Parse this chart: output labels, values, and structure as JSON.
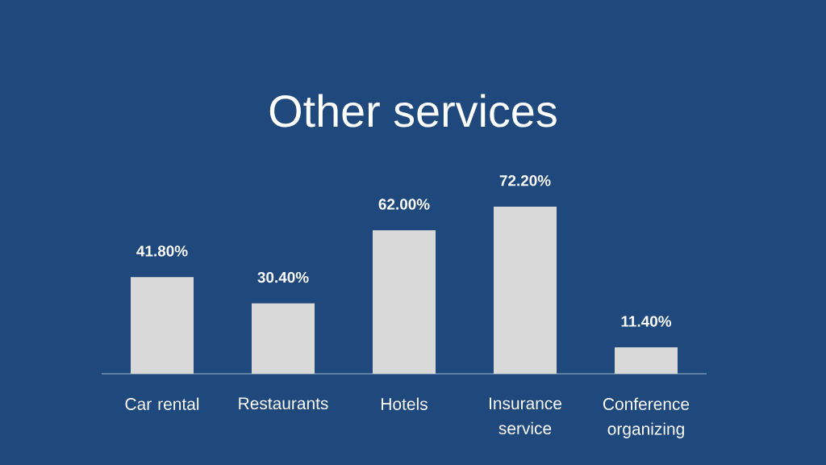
{
  "chart_data": {
    "type": "bar",
    "title": "Other services",
    "categories": [
      "Car rental",
      "Restaurants",
      "Hotels",
      "Insurance service",
      "Conference organizing"
    ],
    "values": [
      41.8,
      30.4,
      62.0,
      72.2,
      11.4
    ],
    "value_labels": [
      "41.80%",
      "30.40%",
      "62.00%",
      "72.20%",
      "11.40%"
    ],
    "color": "#d9d9d9",
    "tick_labels": "x"
  }
}
